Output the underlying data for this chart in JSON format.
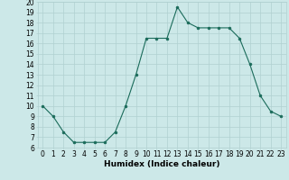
{
  "title": "",
  "xlabel": "Humidex (Indice chaleur)",
  "ylabel": "",
  "x": [
    0,
    1,
    2,
    3,
    4,
    5,
    6,
    7,
    8,
    9,
    10,
    11,
    12,
    13,
    14,
    15,
    16,
    17,
    18,
    19,
    20,
    21,
    22,
    23
  ],
  "y": [
    10,
    9,
    7.5,
    6.5,
    6.5,
    6.5,
    6.5,
    7.5,
    10,
    13,
    16.5,
    16.5,
    16.5,
    19.5,
    18,
    17.5,
    17.5,
    17.5,
    17.5,
    16.5,
    14,
    11,
    9.5,
    9
  ],
  "line_color": "#1a6b5a",
  "marker": "o",
  "marker_size": 2.0,
  "bg_color": "#cce8e8",
  "grid_color": "#b0d0d0",
  "xlim": [
    -0.5,
    23.5
  ],
  "ylim": [
    6,
    20
  ],
  "yticks": [
    6,
    7,
    8,
    9,
    10,
    11,
    12,
    13,
    14,
    15,
    16,
    17,
    18,
    19,
    20
  ],
  "xtick_labels": [
    "0",
    "1",
    "2",
    "3",
    "4",
    "5",
    "6",
    "7",
    "8",
    "9",
    "10",
    "11",
    "12",
    "13",
    "14",
    "15",
    "16",
    "17",
    "18",
    "19",
    "20",
    "21",
    "22",
    "23"
  ],
  "label_fontsize": 6.5,
  "tick_fontsize": 5.5
}
